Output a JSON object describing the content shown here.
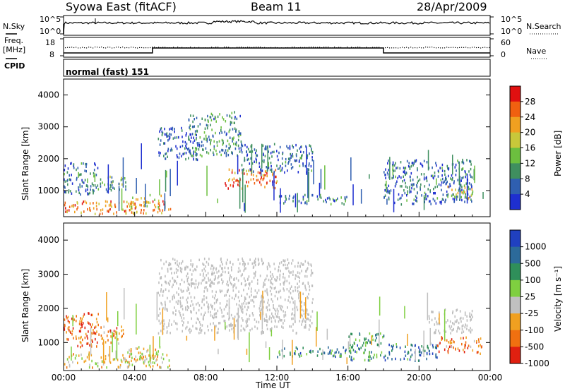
{
  "header": {
    "station": "Syowa East (fitACF)",
    "beam": "Beam 11",
    "date": "28/Apr/2009"
  },
  "colors": {
    "axis": "#000000",
    "power": [
      "#1e2fd0",
      "#2f5fb0",
      "#3f8f5f",
      "#6cbf3f",
      "#c8c83a",
      "#f0a020",
      "#f06010",
      "#e01010"
    ],
    "velocity": [
      "#2040c0",
      "#2c6a9a",
      "#2f8f5a",
      "#7fcf40",
      "#c0c0c0",
      "#f0a020",
      "#f07010",
      "#e02010"
    ],
    "ground_scatter": "#bebebe"
  },
  "status_panels": {
    "nsky_label": "N.Sky",
    "nsky_ticks": [
      "10^5",
      "10^0"
    ],
    "nsearch_label": "N.Search",
    "nsearch_ticks": [
      "10^5",
      "10^0"
    ],
    "freq_label_1": "Freq.",
    "freq_label_2": "[MHz]",
    "freq_ticks": [
      "18",
      "8"
    ],
    "nave_label": "Nave",
    "nave_ticks": [
      "60",
      "0"
    ],
    "cpid_label": "CPID",
    "cpid_value": "normal (fast) 151"
  },
  "chart_data": [
    {
      "type": "heatmap",
      "name": "power",
      "ylabel": "Slant Range [km]",
      "xlabel": "",
      "yticks": [
        "1000",
        "2000",
        "3000",
        "4000"
      ],
      "ylim": [
        180,
        4500
      ],
      "xlim_hours": [
        0,
        24
      ],
      "colorbar_label": "Power [dB]",
      "colorbar_ticks": [
        "4",
        "8",
        "12",
        "16",
        "20",
        "24",
        "28"
      ],
      "colorbar_range": [
        0,
        30
      ],
      "regions": [
        {
          "t0": 0.0,
          "t1": 6.0,
          "r0": 300,
          "r1": 700,
          "level": 0.75
        },
        {
          "t0": 0.0,
          "t1": 2.0,
          "r0": 900,
          "r1": 1900,
          "level": 0.2
        },
        {
          "t0": 2.0,
          "t1": 3.5,
          "r0": 1000,
          "r1": 1500,
          "level": 0.35
        },
        {
          "t0": 3.5,
          "t1": 5.5,
          "r0": 500,
          "r1": 900,
          "level": 0.6
        },
        {
          "t0": 5.3,
          "t1": 7.5,
          "r0": 2000,
          "r1": 3000,
          "level": 0.15
        },
        {
          "t0": 7.0,
          "t1": 10.0,
          "r0": 2100,
          "r1": 3500,
          "level": 0.3
        },
        {
          "t0": 9.0,
          "t1": 12.0,
          "r0": 1100,
          "r1": 1700,
          "level": 0.8
        },
        {
          "t0": 10.0,
          "t1": 14.0,
          "r0": 1600,
          "r1": 2500,
          "level": 0.2
        },
        {
          "t0": 12.0,
          "t1": 16.0,
          "r0": 600,
          "r1": 900,
          "level": 0.25
        },
        {
          "t0": 18.0,
          "t1": 23.0,
          "r0": 600,
          "r1": 2000,
          "level": 0.2
        },
        {
          "t0": 21.5,
          "t1": 23.0,
          "r0": 800,
          "r1": 1200,
          "level": 0.55
        }
      ]
    },
    {
      "type": "heatmap",
      "name": "velocity",
      "ylabel": "Slant Range [km]",
      "xlabel": "Time UT",
      "yticks": [
        "1000",
        "2000",
        "3000",
        "4000"
      ],
      "ylim": [
        180,
        4500
      ],
      "xlim_hours": [
        0,
        24
      ],
      "xticks": [
        "00:00",
        "04:00",
        "08:00",
        "12:00",
        "16:00",
        "20:00",
        "00:00"
      ],
      "colorbar_label": "Velocity [m s⁻¹]",
      "colorbar_ticks": [
        "1000",
        "500",
        "100",
        "25",
        "-25",
        "-100",
        "-500",
        "-1000"
      ],
      "regions": [
        {
          "t0": 0.0,
          "t1": 6.0,
          "r0": 300,
          "r1": 700,
          "level": 0.6
        },
        {
          "t0": 0.0,
          "t1": 2.0,
          "r0": 900,
          "r1": 1900,
          "level": 0.85
        },
        {
          "t0": 2.0,
          "t1": 3.5,
          "r0": 1000,
          "r1": 1500,
          "level": 0.7
        },
        {
          "t0": 3.5,
          "t1": 5.5,
          "r0": 500,
          "r1": 900,
          "level": 0.6
        },
        {
          "t0": 5.3,
          "t1": 14.0,
          "r0": 1300,
          "r1": 3500,
          "level": -1
        },
        {
          "t0": 12.0,
          "t1": 16.0,
          "r0": 600,
          "r1": 900,
          "level": 0.3
        },
        {
          "t0": 16.0,
          "t1": 18.0,
          "r0": 500,
          "r1": 1300,
          "level": 0.3
        },
        {
          "t0": 18.0,
          "t1": 21.0,
          "r0": 500,
          "r1": 1000,
          "level": 0.2
        },
        {
          "t0": 20.5,
          "t1": 23.0,
          "r0": 1300,
          "r1": 2000,
          "level": -1
        },
        {
          "t0": 21.0,
          "t1": 23.5,
          "r0": 700,
          "r1": 1200,
          "level": 0.8
        }
      ]
    }
  ]
}
